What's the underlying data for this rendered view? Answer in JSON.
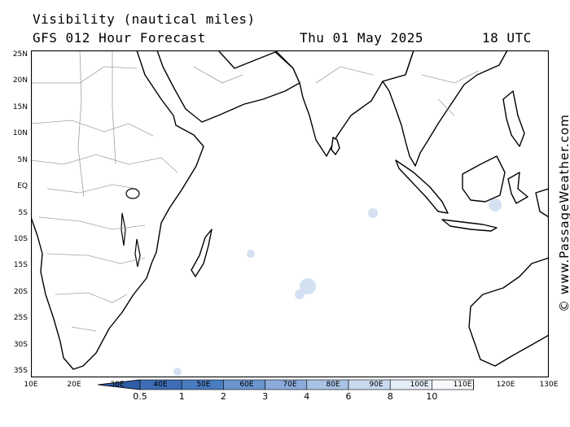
{
  "title": "Visibility (nautical miles)",
  "model": "GFS 012 Hour Forecast",
  "date": "Thu 01 May 2025",
  "time": "18 UTC",
  "credit": "© www.PassageWeather.com",
  "map": {
    "lat_labels": [
      "25N",
      "20N",
      "15N",
      "10N",
      "5N",
      "EQ",
      "5S",
      "10S",
      "15S",
      "20S",
      "25S",
      "30S",
      "35S"
    ],
    "lon_labels": [
      "10E",
      "20E",
      "30E",
      "40E",
      "50E",
      "60E",
      "70E",
      "80E",
      "90E",
      "100E",
      "110E",
      "120E",
      "130E"
    ],
    "lon_range": [
      10,
      130
    ],
    "lat_range": [
      -36,
      26
    ],
    "ocean_color": "#ffffff",
    "coast_color": "#000000",
    "border_color": "#a0a0a0"
  },
  "colorbar": {
    "labels": [
      "0.5",
      "1",
      "2",
      "3",
      "4",
      "6",
      "8",
      "10"
    ],
    "colors": [
      "#3e6db5",
      "#4a7cc0",
      "#6b95cf",
      "#8aabd9",
      "#a9c3e4",
      "#c9daf0",
      "#e4ecf8",
      "#f7f9fd"
    ]
  }
}
